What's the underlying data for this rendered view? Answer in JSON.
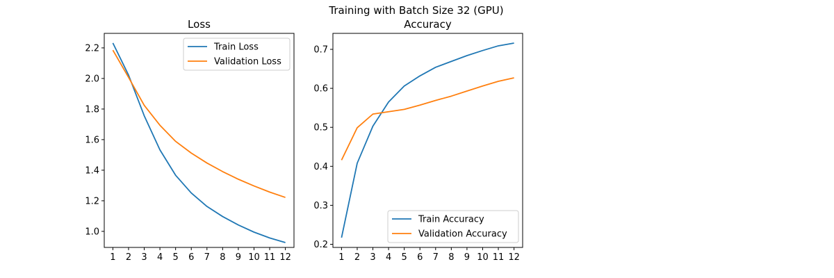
{
  "figure": {
    "suptitle": "Training with Batch Size 32 (GPU)"
  },
  "chart_data": [
    {
      "type": "line",
      "title": "Loss",
      "xlabel": "",
      "ylabel": "",
      "x": [
        1,
        2,
        3,
        4,
        5,
        6,
        7,
        8,
        9,
        10,
        11,
        12
      ],
      "xticks": [
        1,
        2,
        3,
        4,
        5,
        6,
        7,
        8,
        9,
        10,
        11,
        12
      ],
      "ylim": [
        0.895,
        2.295
      ],
      "yticks": [
        1.0,
        1.2,
        1.4,
        1.6,
        1.8,
        2.0,
        2.2
      ],
      "ytick_labels": [
        "1.0",
        "1.2",
        "1.4",
        "1.6",
        "1.8",
        "2.0",
        "2.2"
      ],
      "legend_loc": "upper right",
      "grid": false,
      "series": [
        {
          "name": "Train Loss",
          "color": "#1f77b4",
          "values": [
            2.232,
            2.022,
            1.756,
            1.533,
            1.367,
            1.251,
            1.163,
            1.097,
            1.042,
            0.995,
            0.957,
            0.927
          ]
        },
        {
          "name": "Validation Loss",
          "color": "#ff7f0e",
          "values": [
            2.185,
            2.007,
            1.824,
            1.694,
            1.589,
            1.512,
            1.447,
            1.391,
            1.341,
            1.297,
            1.257,
            1.222
          ]
        }
      ]
    },
    {
      "type": "line",
      "title": "Accuracy",
      "xlabel": "",
      "ylabel": "",
      "x": [
        1,
        2,
        3,
        4,
        5,
        6,
        7,
        8,
        9,
        10,
        11,
        12
      ],
      "xticks": [
        1,
        2,
        3,
        4,
        5,
        6,
        7,
        8,
        9,
        10,
        11,
        12
      ],
      "ylim": [
        0.192,
        0.741
      ],
      "yticks": [
        0.2,
        0.3,
        0.4,
        0.5,
        0.6,
        0.7
      ],
      "ytick_labels": [
        "0.2",
        "0.3",
        "0.4",
        "0.5",
        "0.6",
        "0.7"
      ],
      "legend_loc": "lower right",
      "grid": false,
      "series": [
        {
          "name": "Train Accuracy",
          "color": "#1f77b4",
          "values": [
            0.217,
            0.408,
            0.503,
            0.565,
            0.606,
            0.632,
            0.654,
            0.669,
            0.684,
            0.697,
            0.709,
            0.716
          ]
        },
        {
          "name": "Validation Accuracy",
          "color": "#ff7f0e",
          "values": [
            0.416,
            0.499,
            0.534,
            0.54,
            0.546,
            0.557,
            0.569,
            0.58,
            0.593,
            0.606,
            0.618,
            0.627
          ]
        }
      ]
    }
  ]
}
